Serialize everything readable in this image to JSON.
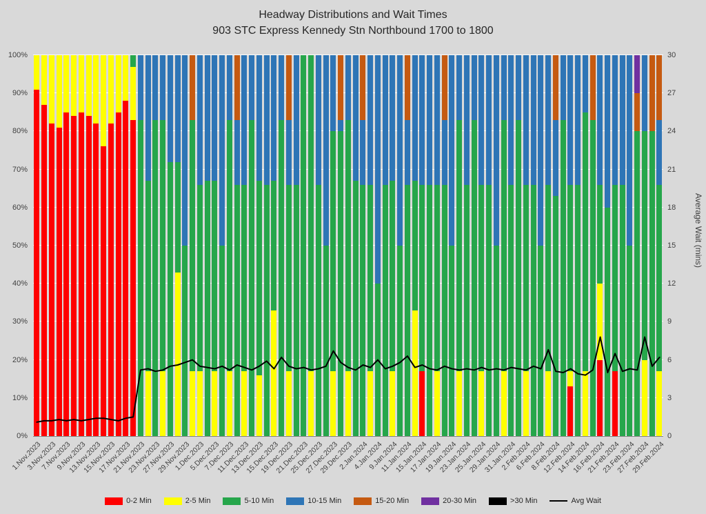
{
  "title": "Headway Distributions and Wait Times",
  "subtitle": "903 STC Express  Kennedy Stn Northbound 1700 to 1800",
  "y_axis_right_title": "Average Wait (mins)",
  "colors": {
    "red": "#FF0000",
    "yellow": "#FFFF00",
    "green": "#26A64B",
    "blue": "#2E75B6",
    "orange": "#C55A11",
    "purple": "#7030A0",
    "black": "#000000",
    "line": "#000000"
  },
  "y_left": {
    "ticks": [
      "0%",
      "10%",
      "20%",
      "30%",
      "40%",
      "50%",
      "60%",
      "70%",
      "80%",
      "90%",
      "100%"
    ]
  },
  "y_right": {
    "ticks": [
      0,
      3,
      6,
      9,
      12,
      15,
      18,
      21,
      24,
      27,
      30
    ]
  },
  "legend": [
    {
      "label": "0-2 Min",
      "color": "#FF0000",
      "type": "box"
    },
    {
      "label": "2-5 Min",
      "color": "#FFFF00",
      "type": "box"
    },
    {
      "label": "5-10 Min",
      "color": "#26A64B",
      "type": "box"
    },
    {
      "label": "10-15 Min",
      "color": "#2E75B6",
      "type": "box"
    },
    {
      "label": "15-20 Min",
      "color": "#C55A11",
      "type": "box"
    },
    {
      "label": "20-30 Min",
      "color": "#7030A0",
      "type": "box"
    },
    {
      "label": ">30 Min",
      "color": "#000000",
      "type": "box"
    },
    {
      "label": "Avg Wait",
      "color": "#000000",
      "type": "line"
    }
  ],
  "chart_data": {
    "type": "bar",
    "subtype": "stacked-100-with-line",
    "stack_order": [
      "0-2 Min",
      "2-5 Min",
      "5-10 Min",
      "10-15 Min",
      "15-20 Min",
      "20-30 Min",
      ">30 Min"
    ],
    "y_left_range": [
      0,
      100
    ],
    "y_right_range": [
      0,
      30
    ],
    "grid": true,
    "legend_position": "bottom",
    "bars": [
      {
        "d": "1.Nov.2023",
        "s": [
          91,
          9,
          0,
          0,
          0,
          0,
          0
        ],
        "w": 1.1
      },
      {
        "d": "",
        "s": [
          87,
          13,
          0,
          0,
          0,
          0,
          0
        ],
        "w": 1.2
      },
      {
        "d": "3.Nov.2023",
        "s": [
          82,
          18,
          0,
          0,
          0,
          0,
          0
        ],
        "w": 1.2
      },
      {
        "d": "",
        "s": [
          81,
          19,
          0,
          0,
          0,
          0,
          0
        ],
        "w": 1.3
      },
      {
        "d": "7.Nov.2023",
        "s": [
          85,
          15,
          0,
          0,
          0,
          0,
          0
        ],
        "w": 1.2
      },
      {
        "d": "",
        "s": [
          84,
          16,
          0,
          0,
          0,
          0,
          0
        ],
        "w": 1.3
      },
      {
        "d": "9.Nov.2023",
        "s": [
          85,
          15,
          0,
          0,
          0,
          0,
          0
        ],
        "w": 1.2
      },
      {
        "d": "",
        "s": [
          84,
          16,
          0,
          0,
          0,
          0,
          0
        ],
        "w": 1.3
      },
      {
        "d": "13.Nov.2023",
        "s": [
          82,
          18,
          0,
          0,
          0,
          0,
          0
        ],
        "w": 1.4
      },
      {
        "d": "",
        "s": [
          76,
          24,
          0,
          0,
          0,
          0,
          0
        ],
        "w": 1.4
      },
      {
        "d": "15.Nov.2023",
        "s": [
          82,
          18,
          0,
          0,
          0,
          0,
          0
        ],
        "w": 1.3
      },
      {
        "d": "",
        "s": [
          85,
          15,
          0,
          0,
          0,
          0,
          0
        ],
        "w": 1.2
      },
      {
        "d": "17.Nov.2023",
        "s": [
          88,
          12,
          0,
          0,
          0,
          0,
          0
        ],
        "w": 1.4
      },
      {
        "d": "",
        "s": [
          83,
          14,
          3,
          0,
          0,
          0,
          0
        ],
        "w": 1.5
      },
      {
        "d": "21.Nov.2023",
        "s": [
          0,
          0,
          83,
          17,
          0,
          0,
          0
        ],
        "w": 5.2
      },
      {
        "d": "",
        "s": [
          0,
          17,
          50,
          33,
          0,
          0,
          0
        ],
        "w": 5.3
      },
      {
        "d": "23.Nov.2023",
        "s": [
          0,
          0,
          83,
          17,
          0,
          0,
          0
        ],
        "w": 5.1
      },
      {
        "d": "",
        "s": [
          0,
          17,
          66,
          17,
          0,
          0,
          0
        ],
        "w": 5.2
      },
      {
        "d": "27.Nov.2023",
        "s": [
          0,
          0,
          72,
          28,
          0,
          0,
          0
        ],
        "w": 5.5
      },
      {
        "d": "",
        "s": [
          0,
          43,
          29,
          28,
          0,
          0,
          0
        ],
        "w": 5.6
      },
      {
        "d": "29.Nov.2023",
        "s": [
          0,
          0,
          50,
          50,
          0,
          0,
          0
        ],
        "w": 5.8
      },
      {
        "d": "",
        "s": [
          0,
          17,
          66,
          0,
          17,
          0,
          0
        ],
        "w": 6.0
      },
      {
        "d": "1.Dec.2023",
        "s": [
          0,
          17,
          49,
          34,
          0,
          0,
          0
        ],
        "w": 5.5
      },
      {
        "d": "",
        "s": [
          0,
          0,
          67,
          33,
          0,
          0,
          0
        ],
        "w": 5.4
      },
      {
        "d": "5.Dec.2023",
        "s": [
          0,
          17,
          50,
          33,
          0,
          0,
          0
        ],
        "w": 5.3
      },
      {
        "d": "",
        "s": [
          0,
          0,
          50,
          50,
          0,
          0,
          0
        ],
        "w": 5.5
      },
      {
        "d": "7.Dec.2023",
        "s": [
          0,
          17,
          66,
          17,
          0,
          0,
          0
        ],
        "w": 5.2
      },
      {
        "d": "",
        "s": [
          0,
          0,
          66,
          17,
          17,
          0,
          0
        ],
        "w": 5.6
      },
      {
        "d": "11.Dec.2023",
        "s": [
          0,
          17,
          49,
          34,
          0,
          0,
          0
        ],
        "w": 5.4
      },
      {
        "d": "",
        "s": [
          0,
          0,
          83,
          17,
          0,
          0,
          0
        ],
        "w": 5.2
      },
      {
        "d": "13.Dec.2023",
        "s": [
          0,
          16,
          51,
          33,
          0,
          0,
          0
        ],
        "w": 5.5
      },
      {
        "d": "",
        "s": [
          0,
          0,
          66,
          34,
          0,
          0,
          0
        ],
        "w": 5.9
      },
      {
        "d": "15.Dec.2023",
        "s": [
          0,
          33,
          34,
          33,
          0,
          0,
          0
        ],
        "w": 5.3
      },
      {
        "d": "",
        "s": [
          0,
          0,
          83,
          17,
          0,
          0,
          0
        ],
        "w": 6.2
      },
      {
        "d": "19.Dec.2023",
        "s": [
          0,
          17,
          49,
          17,
          17,
          0,
          0
        ],
        "w": 5.5
      },
      {
        "d": "",
        "s": [
          0,
          0,
          66,
          34,
          0,
          0,
          0
        ],
        "w": 5.3
      },
      {
        "d": "21.Dec.2023",
        "s": [
          0,
          0,
          100,
          0,
          0,
          0,
          0
        ],
        "w": 5.4
      },
      {
        "d": "",
        "s": [
          0,
          17,
          83,
          0,
          0,
          0,
          0
        ],
        "w": 5.2
      },
      {
        "d": "25.Dec.2023",
        "s": [
          0,
          0,
          66,
          34,
          0,
          0,
          0
        ],
        "w": 5.3
      },
      {
        "d": "",
        "s": [
          0,
          0,
          50,
          50,
          0,
          0,
          0
        ],
        "w": 5.5
      },
      {
        "d": "27.Dec.2023",
        "s": [
          0,
          17,
          63,
          20,
          0,
          0,
          0
        ],
        "w": 6.7
      },
      {
        "d": "",
        "s": [
          0,
          0,
          80,
          3,
          17,
          0,
          0
        ],
        "w": 5.8
      },
      {
        "d": "29.Dec.2023",
        "s": [
          0,
          17,
          66,
          17,
          0,
          0,
          0
        ],
        "w": 5.4
      },
      {
        "d": "",
        "s": [
          0,
          0,
          67,
          33,
          0,
          0,
          0
        ],
        "w": 5.2
      },
      {
        "d": "2.Jan.2024",
        "s": [
          0,
          0,
          66,
          17,
          17,
          0,
          0
        ],
        "w": 5.6
      },
      {
        "d": "",
        "s": [
          0,
          17,
          49,
          34,
          0,
          0,
          0
        ],
        "w": 5.4
      },
      {
        "d": "4.Jan.2024",
        "s": [
          0,
          0,
          40,
          60,
          0,
          0,
          0
        ],
        "w": 6.0
      },
      {
        "d": "",
        "s": [
          0,
          0,
          66,
          34,
          0,
          0,
          0
        ],
        "w": 5.3
      },
      {
        "d": "9.Jan.2024",
        "s": [
          0,
          17,
          50,
          33,
          0,
          0,
          0
        ],
        "w": 5.5
      },
      {
        "d": "",
        "s": [
          0,
          0,
          50,
          50,
          0,
          0,
          0
        ],
        "w": 5.8
      },
      {
        "d": "11.Jan.2024",
        "s": [
          0,
          0,
          66,
          17,
          17,
          0,
          0
        ],
        "w": 6.3
      },
      {
        "d": "",
        "s": [
          0,
          33,
          34,
          33,
          0,
          0,
          0
        ],
        "w": 5.4
      },
      {
        "d": "15.Jan.2024",
        "s": [
          17,
          0,
          49,
          34,
          0,
          0,
          0
        ],
        "w": 5.6
      },
      {
        "d": "",
        "s": [
          0,
          0,
          66,
          34,
          0,
          0,
          0
        ],
        "w": 5.3
      },
      {
        "d": "17.Jan.2024",
        "s": [
          0,
          17,
          49,
          34,
          0,
          0,
          0
        ],
        "w": 5.2
      },
      {
        "d": "",
        "s": [
          0,
          0,
          66,
          17,
          17,
          0,
          0
        ],
        "w": 5.5
      },
      {
        "d": "19.Jan.2024",
        "s": [
          0,
          0,
          50,
          50,
          0,
          0,
          0
        ],
        "w": 5.3
      },
      {
        "d": "",
        "s": [
          0,
          17,
          66,
          17,
          0,
          0,
          0
        ],
        "w": 5.2
      },
      {
        "d": "23.Jan.2024",
        "s": [
          0,
          0,
          66,
          34,
          0,
          0,
          0
        ],
        "w": 5.3
      },
      {
        "d": "",
        "s": [
          0,
          0,
          83,
          17,
          0,
          0,
          0
        ],
        "w": 5.2
      },
      {
        "d": "25.Jan.2024",
        "s": [
          0,
          17,
          49,
          34,
          0,
          0,
          0
        ],
        "w": 5.4
      },
      {
        "d": "",
        "s": [
          0,
          0,
          66,
          34,
          0,
          0,
          0
        ],
        "w": 5.2
      },
      {
        "d": "29.Jan.2024",
        "s": [
          0,
          0,
          50,
          50,
          0,
          0,
          0
        ],
        "w": 5.3
      },
      {
        "d": "",
        "s": [
          0,
          17,
          66,
          17,
          0,
          0,
          0
        ],
        "w": 5.2
      },
      {
        "d": "31.Jan.2024",
        "s": [
          0,
          0,
          66,
          34,
          0,
          0,
          0
        ],
        "w": 5.4
      },
      {
        "d": "",
        "s": [
          0,
          0,
          83,
          17,
          0,
          0,
          0
        ],
        "w": 5.3
      },
      {
        "d": "2.Feb.2024",
        "s": [
          0,
          17,
          49,
          34,
          0,
          0,
          0
        ],
        "w": 5.2
      },
      {
        "d": "",
        "s": [
          0,
          0,
          66,
          34,
          0,
          0,
          0
        ],
        "w": 5.5
      },
      {
        "d": "6.Feb.2024",
        "s": [
          0,
          0,
          50,
          50,
          0,
          0,
          0
        ],
        "w": 5.3
      },
      {
        "d": "",
        "s": [
          0,
          17,
          49,
          34,
          0,
          0,
          0
        ],
        "w": 6.8
      },
      {
        "d": "8.Feb.2024",
        "s": [
          0,
          0,
          63,
          20,
          17,
          0,
          0
        ],
        "w": 5.1
      },
      {
        "d": "",
        "s": [
          0,
          0,
          83,
          17,
          0,
          0,
          0
        ],
        "w": 5.0
      },
      {
        "d": "12.Feb.2024",
        "s": [
          13,
          4,
          49,
          34,
          0,
          0,
          0
        ],
        "w": 5.3
      },
      {
        "d": "",
        "s": [
          0,
          0,
          66,
          34,
          0,
          0,
          0
        ],
        "w": 4.9
      },
      {
        "d": "14.Feb.2024",
        "s": [
          0,
          17,
          68,
          15,
          0,
          0,
          0
        ],
        "w": 4.8
      },
      {
        "d": "",
        "s": [
          0,
          0,
          83,
          0,
          17,
          0,
          0
        ],
        "w": 5.2
      },
      {
        "d": "16.Feb.2024",
        "s": [
          20,
          20,
          26,
          34,
          0,
          0,
          0
        ],
        "w": 7.8
      },
      {
        "d": "",
        "s": [
          0,
          0,
          60,
          40,
          0,
          0,
          0
        ],
        "w": 5.0
      },
      {
        "d": "21.Feb.2024",
        "s": [
          17,
          0,
          49,
          34,
          0,
          0,
          0
        ],
        "w": 6.5
      },
      {
        "d": "",
        "s": [
          0,
          0,
          66,
          34,
          0,
          0,
          0
        ],
        "w": 5.1
      },
      {
        "d": "23.Feb.2024",
        "s": [
          0,
          0,
          50,
          50,
          0,
          0,
          0
        ],
        "w": 5.3
      },
      {
        "d": "",
        "s": [
          0,
          0,
          80,
          0,
          10,
          10,
          0
        ],
        "w": 5.2
      },
      {
        "d": "27.Feb.2024",
        "s": [
          0,
          20,
          60,
          20,
          0,
          0,
          0
        ],
        "w": 7.8
      },
      {
        "d": "",
        "s": [
          0,
          0,
          80,
          0,
          20,
          0,
          0
        ],
        "w": 5.5
      },
      {
        "d": "29.Feb.2024",
        "s": [
          0,
          17,
          49,
          17,
          17,
          0,
          0
        ],
        "w": 6.2
      }
    ]
  }
}
